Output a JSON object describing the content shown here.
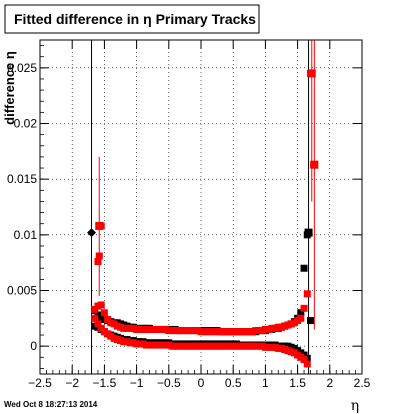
{
  "chart_data": {
    "type": "scatter",
    "title": "Fitted difference in  η  Primary Tracks",
    "xlabel": "η",
    "ylabel": "difference η",
    "xlim": [
      -2.5,
      2.5
    ],
    "ylim": [
      -0.0025,
      0.0275
    ],
    "x_ticks": [
      -2.5,
      -2,
      -1.5,
      -1,
      -0.5,
      0,
      0.5,
      1,
      1.5,
      2,
      2.5
    ],
    "x_tick_labels": [
      "−2.5",
      "−2",
      "−1.5",
      "−1",
      "−0.5",
      "0",
      "0.5",
      "1",
      "1.5",
      "2",
      "2.5"
    ],
    "y_ticks": [
      0,
      0.005,
      0.01,
      0.015,
      0.02,
      0.025
    ],
    "y_tick_labels": [
      "0",
      "0.005",
      "0.01",
      "0.015",
      "0.02",
      "0.025"
    ],
    "grid": true,
    "legend": "none",
    "timestamp": "Wed Oct  8 18:27:13 2014",
    "colors": {
      "series_black": "#000000",
      "series_red": "#ff0000",
      "background": "#ffffff"
    },
    "series": [
      {
        "color": "#000000",
        "marker": "square",
        "x": [
          -1.65,
          -1.6,
          -1.55,
          -1.5,
          -1.45,
          -1.4,
          -1.35,
          -1.3,
          -1.25,
          -1.2,
          -1.15,
          -1.1,
          -1.05,
          -1.0,
          -0.95,
          -0.9,
          -0.85,
          -0.8,
          -0.75,
          -0.7,
          -0.65,
          -0.6,
          -0.55,
          -0.5,
          -0.45,
          -0.4,
          -0.35,
          -0.3,
          -0.25,
          -0.2,
          -0.15,
          -0.1,
          -0.05,
          0.0,
          0.05,
          0.1,
          0.15,
          0.2,
          0.25,
          0.3,
          0.35,
          0.4,
          0.45,
          0.5,
          0.55,
          0.6,
          0.65,
          0.7,
          0.75,
          0.8,
          0.85,
          0.9,
          0.95,
          1.0,
          1.05,
          1.1,
          1.15,
          1.2,
          1.25,
          1.3,
          1.35,
          1.4,
          1.45,
          1.5,
          1.55,
          1.6,
          1.65,
          1.7,
          1.65,
          1.6,
          1.55,
          1.5,
          1.45,
          1.4,
          1.35,
          1.3,
          1.25,
          1.2,
          1.15,
          1.1,
          1.05,
          1.0,
          0.95,
          0.9,
          0.85,
          0.8,
          0.75,
          0.7,
          0.65,
          0.6,
          0.55,
          0.5,
          0.45,
          0.4,
          0.35,
          0.3,
          0.25,
          0.2,
          0.15,
          0.1,
          0.05,
          0.0,
          -0.05,
          -0.1,
          -0.15,
          -0.2,
          -0.25,
          -0.3,
          -0.35,
          -0.4,
          -0.45,
          -0.5,
          -0.55,
          -0.6,
          -0.65,
          -0.7,
          -0.75,
          -0.8,
          -0.85,
          -0.9,
          -0.95,
          -1.0,
          -1.05,
          -1.1,
          -1.15,
          -1.2,
          -1.25,
          -1.3,
          -1.35,
          -1.4,
          -1.45,
          -1.5,
          -1.55,
          -1.6,
          -1.65
        ],
        "y": [
          0.0032,
          0.0028,
          0.0026,
          0.0024,
          0.0023,
          0.0022,
          0.0021,
          0.0021,
          0.002,
          0.0019,
          0.0018,
          0.0017,
          0.0017,
          0.0016,
          0.0016,
          0.0016,
          0.0016,
          0.0016,
          0.0015,
          0.0015,
          0.0015,
          0.0015,
          0.0015,
          0.0015,
          0.0015,
          0.0015,
          0.0014,
          0.0014,
          0.0014,
          0.0014,
          0.0014,
          0.0014,
          0.0014,
          0.0014,
          0.0014,
          0.0014,
          0.0014,
          0.0014,
          0.0014,
          0.0013,
          0.0013,
          0.0013,
          0.0013,
          0.0013,
          0.0013,
          0.0013,
          0.0013,
          0.0013,
          0.0013,
          0.0013,
          0.0013,
          0.0014,
          0.0014,
          0.0014,
          0.0015,
          0.0015,
          0.0016,
          0.0016,
          0.0017,
          0.0018,
          0.0019,
          0.002,
          0.0022,
          0.0025,
          0.003,
          0.007,
          0.01,
          0.0023,
          -0.0011,
          -0.0008,
          -0.0006,
          -0.0004,
          -0.0002,
          -0.0001,
          0.0,
          0.0,
          0.0,
          0.0,
          0.0001,
          0.0001,
          0.0001,
          0.0001,
          0.0001,
          0.0001,
          0.0001,
          0.0001,
          0.0001,
          0.0001,
          0.0001,
          0.0001,
          0.0002,
          0.0002,
          0.0002,
          0.0002,
          0.0002,
          0.0002,
          0.0002,
          0.0002,
          0.0002,
          0.0002,
          0.0002,
          0.0002,
          0.0002,
          0.0002,
          0.0002,
          0.0002,
          0.0002,
          0.0002,
          0.0002,
          0.0002,
          0.0002,
          0.0003,
          0.0003,
          0.0003,
          0.0003,
          0.0003,
          0.0003,
          0.0003,
          0.0003,
          0.0004,
          0.0004,
          0.0004,
          0.0005,
          0.0005,
          0.0006,
          0.0006,
          0.0007,
          0.0008,
          0.0009,
          0.001,
          0.0011,
          0.0013,
          0.0015,
          0.0017,
          0.0018
        ]
      },
      {
        "color": "#ff0000",
        "marker": "square",
        "x": [
          -1.65,
          -1.6,
          -1.55,
          -1.5,
          -1.45,
          -1.4,
          -1.35,
          -1.3,
          -1.25,
          -1.2,
          -1.15,
          -1.1,
          -1.05,
          -1.0,
          -0.95,
          -0.9,
          -0.85,
          -0.8,
          -0.75,
          -0.7,
          -0.65,
          -0.6,
          -0.55,
          -0.5,
          -0.45,
          -0.4,
          -0.35,
          -0.3,
          -0.25,
          -0.2,
          -0.15,
          -0.1,
          -0.05,
          0.0,
          0.05,
          0.1,
          0.15,
          0.2,
          0.25,
          0.3,
          0.35,
          0.4,
          0.45,
          0.5,
          0.55,
          0.6,
          0.65,
          0.7,
          0.75,
          0.8,
          0.85,
          0.9,
          0.95,
          1.0,
          1.05,
          1.1,
          1.15,
          1.2,
          1.25,
          1.3,
          1.35,
          1.4,
          1.45,
          1.5,
          1.55,
          1.6,
          1.65,
          1.7,
          1.75,
          1.65,
          1.6,
          1.55,
          1.5,
          1.45,
          1.4,
          1.35,
          1.3,
          1.25,
          1.2,
          1.15,
          1.1,
          1.05,
          1.0,
          0.95,
          0.9,
          0.85,
          0.8,
          0.75,
          0.7,
          0.65,
          0.6,
          0.55,
          0.5,
          0.45,
          0.4,
          0.35,
          0.3,
          0.25,
          0.2,
          0.15,
          0.1,
          0.05,
          0.0,
          -0.05,
          -0.1,
          -0.15,
          -0.2,
          -0.25,
          -0.3,
          -0.35,
          -0.4,
          -0.45,
          -0.5,
          -0.55,
          -0.6,
          -0.65,
          -0.7,
          -0.75,
          -0.8,
          -0.85,
          -0.9,
          -0.95,
          -1.0,
          -1.05,
          -1.1,
          -1.15,
          -1.2,
          -1.25,
          -1.3,
          -1.35,
          -1.4,
          -1.45,
          -1.5,
          -1.55,
          -1.6,
          -1.65,
          -1.6,
          -1.58,
          -1.55
        ],
        "y": [
          0.0033,
          0.0036,
          0.0037,
          0.003,
          0.0024,
          0.0021,
          0.002,
          0.0018,
          0.0017,
          0.0016,
          0.0016,
          0.0016,
          0.0016,
          0.0015,
          0.0015,
          0.0015,
          0.0015,
          0.0015,
          0.0015,
          0.0015,
          0.0015,
          0.0015,
          0.0015,
          0.0014,
          0.0014,
          0.0014,
          0.0014,
          0.0014,
          0.0014,
          0.0014,
          0.0014,
          0.0014,
          0.0014,
          0.0013,
          0.0013,
          0.0013,
          0.0013,
          0.0013,
          0.0013,
          0.0013,
          0.0013,
          0.0013,
          0.0013,
          0.0013,
          0.0013,
          0.0013,
          0.0013,
          0.0013,
          0.0013,
          0.0013,
          0.0014,
          0.0014,
          0.0014,
          0.0015,
          0.0015,
          0.0016,
          0.0016,
          0.0017,
          0.0017,
          0.0018,
          0.0019,
          0.002,
          0.0021,
          0.0023,
          0.0025,
          0.0034,
          0.0047,
          0.0245,
          0.0163,
          -0.0016,
          -0.0012,
          -0.001,
          -0.0008,
          -0.0006,
          -0.0005,
          -0.0004,
          -0.0003,
          -0.0002,
          -0.0002,
          -0.0001,
          -0.0001,
          -0.0001,
          -0.0001,
          0.0,
          0.0,
          0.0,
          0.0,
          0.0,
          0.0,
          0.0,
          0.0,
          0.0,
          0.0,
          0.0,
          0.0,
          0.0,
          0.0,
          0.0,
          0.0,
          0.0,
          0.0,
          0.0,
          0.0,
          0.0,
          0.0,
          0.0,
          0.0,
          0.0,
          0.0,
          0.0,
          0.0,
          0.0,
          0.0001,
          0.0001,
          0.0001,
          0.0001,
          0.0001,
          0.0001,
          0.0001,
          0.0001,
          0.0002,
          0.0002,
          0.0002,
          0.0003,
          0.0003,
          0.0004,
          0.0004,
          0.0005,
          0.0006,
          0.0007,
          0.0009,
          0.0011,
          0.0013,
          0.0016,
          0.002,
          0.0025,
          0.0076,
          0.0081,
          0.0108
        ]
      }
    ],
    "outlier_points": [
      {
        "x": -1.7,
        "y": 0.0102,
        "color": "#000000",
        "marker": "diamond",
        "err_low": -0.0025,
        "err_high": 0.0275
      },
      {
        "x": -1.58,
        "y": 0.0108,
        "color": "#ff0000",
        "marker": "square",
        "err_low": 0.0045,
        "err_high": 0.017
      },
      {
        "x": 1.67,
        "y": 0.0102,
        "color": "#000000",
        "marker": "square",
        "err_low": -0.0025,
        "err_high": 0.0275
      },
      {
        "x": 1.72,
        "y": 0.0245,
        "color": "#ff0000",
        "marker": "square",
        "err_low": 0.013,
        "err_high": 0.0275
      },
      {
        "x": 1.76,
        "y": 0.0163,
        "color": "#ff0000",
        "marker": "square",
        "err_low": 0.0015,
        "err_high": 0.0275
      }
    ]
  }
}
